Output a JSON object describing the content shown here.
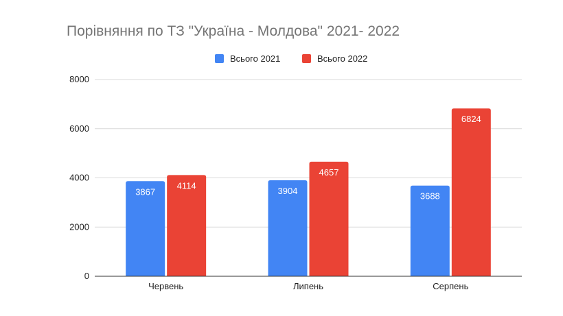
{
  "chart_data": {
    "type": "bar",
    "title": "Порівняння по ТЗ \"Україна - Молдова\" 2021- 2022",
    "xlabel": "",
    "ylabel": "",
    "categories": [
      "Червень",
      "Липень",
      "Серпень"
    ],
    "series": [
      {
        "name": "Всього 2021",
        "values": [
          3867,
          3904,
          3688
        ],
        "color": "#4285f4"
      },
      {
        "name": "Всього 2022",
        "values": [
          4114,
          4657,
          6824
        ],
        "color": "#ea4335"
      }
    ],
    "ylim": [
      0,
      8000
    ],
    "yticks": [
      0,
      2000,
      4000,
      6000,
      8000
    ],
    "grid": true,
    "legend": "top",
    "data_labels": true
  }
}
